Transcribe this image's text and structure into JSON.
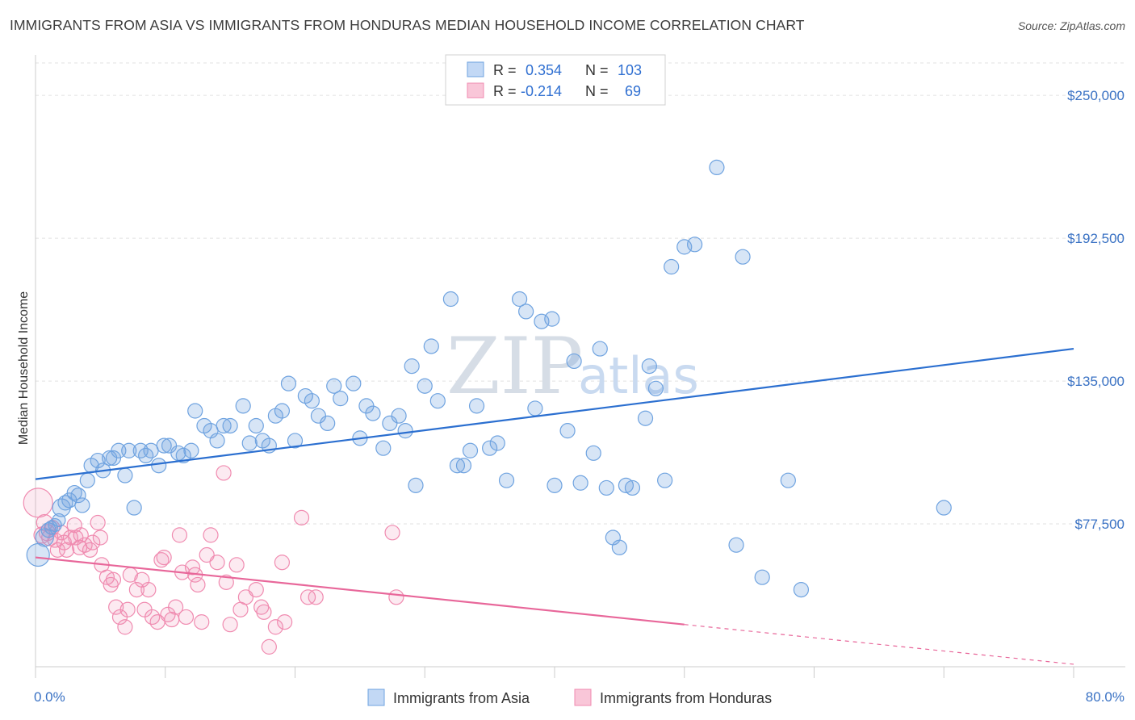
{
  "title": "IMMIGRANTS FROM ASIA VS IMMIGRANTS FROM HONDURAS MEDIAN HOUSEHOLD INCOME CORRELATION CHART",
  "source": "Source: ZipAtlas.com",
  "watermark": {
    "zip": "ZIP",
    "atlas": "atlas"
  },
  "colors": {
    "asia": "#6fa3e0",
    "asia_line": "#2b6fd0",
    "honduras": "#f08bb0",
    "honduras_line": "#e8679a",
    "tick_text": "#3a72c4"
  },
  "legend": {
    "rows": [
      {
        "r_label": "R =",
        "r_value": "0.354",
        "n_label": "N =",
        "n_value": "103"
      },
      {
        "r_label": "R =",
        "r_value": "-0.214",
        "n_label": "N =",
        "n_value": "69"
      }
    ]
  },
  "chart_data": {
    "type": "scatter",
    "ylabel": "Median Household Income",
    "xlim": [
      0,
      80
    ],
    "ylim": [
      20000,
      265000
    ],
    "x_tick_labels": [
      "0.0%",
      "80.0%"
    ],
    "y_ticks": [
      {
        "value": 77500,
        "label": "$77,500"
      },
      {
        "value": 135000,
        "label": "$135,000"
      },
      {
        "value": 192500,
        "label": "$192,500"
      },
      {
        "value": 250000,
        "label": "$250,000"
      }
    ],
    "series": [
      {
        "name": "Immigrants from Asia",
        "trend": {
          "x": [
            0,
            80
          ],
          "y": [
            95500,
            148000
          ]
        },
        "points": [
          [
            0.2,
            65000,
            14
          ],
          [
            0.7,
            72000,
            11
          ],
          [
            1.0,
            75000,
            9
          ],
          [
            1.2,
            76000,
            8
          ],
          [
            1.5,
            77000,
            8
          ],
          [
            1.8,
            79000,
            8
          ],
          [
            2.0,
            84000,
            11
          ],
          [
            2.3,
            86000,
            9
          ],
          [
            2.6,
            87000,
            9
          ],
          [
            3.0,
            90000,
            9
          ],
          [
            3.3,
            89000,
            9
          ],
          [
            3.6,
            85000,
            9
          ],
          [
            4.0,
            95000,
            9
          ],
          [
            4.3,
            101000,
            9
          ],
          [
            4.8,
            103000,
            9
          ],
          [
            5.2,
            99000,
            9
          ],
          [
            5.7,
            104000,
            9
          ],
          [
            6.0,
            104000,
            9
          ],
          [
            6.4,
            107000,
            9
          ],
          [
            6.9,
            97000,
            9
          ],
          [
            7.2,
            107000,
            9
          ],
          [
            7.6,
            84000,
            9
          ],
          [
            8.1,
            107000,
            9
          ],
          [
            8.5,
            105000,
            9
          ],
          [
            8.9,
            107000,
            9
          ],
          [
            9.5,
            101000,
            9
          ],
          [
            9.9,
            109000,
            9
          ],
          [
            10.3,
            109000,
            9
          ],
          [
            11.0,
            106000,
            9
          ],
          [
            11.4,
            105000,
            9
          ],
          [
            12.0,
            107000,
            9
          ],
          [
            12.3,
            123000,
            9
          ],
          [
            13.0,
            117000,
            9
          ],
          [
            13.5,
            115000,
            9
          ],
          [
            14.0,
            111000,
            9
          ],
          [
            14.5,
            117000,
            9
          ],
          [
            15.0,
            117000,
            9
          ],
          [
            16.0,
            125000,
            9
          ],
          [
            16.5,
            110000,
            9
          ],
          [
            17.0,
            117000,
            9
          ],
          [
            17.5,
            111000,
            9
          ],
          [
            18.0,
            109000,
            9
          ],
          [
            18.5,
            121000,
            9
          ],
          [
            19.0,
            123000,
            9
          ],
          [
            19.5,
            134000,
            9
          ],
          [
            20.0,
            111000,
            9
          ],
          [
            20.8,
            129000,
            9
          ],
          [
            21.3,
            127000,
            9
          ],
          [
            21.8,
            121000,
            9
          ],
          [
            22.5,
            118000,
            9
          ],
          [
            23.0,
            133000,
            9
          ],
          [
            23.5,
            128000,
            9
          ],
          [
            24.5,
            134000,
            9
          ],
          [
            25.0,
            112000,
            9
          ],
          [
            25.5,
            125000,
            9
          ],
          [
            26.0,
            122000,
            9
          ],
          [
            26.8,
            108000,
            9
          ],
          [
            27.3,
            118000,
            9
          ],
          [
            28.0,
            121000,
            9
          ],
          [
            28.5,
            115000,
            9
          ],
          [
            29.0,
            141000,
            9
          ],
          [
            29.3,
            93000,
            9
          ],
          [
            30.0,
            133000,
            9
          ],
          [
            30.5,
            149000,
            9
          ],
          [
            31.0,
            127000,
            9
          ],
          [
            32.0,
            168000,
            9
          ],
          [
            32.5,
            101000,
            9
          ],
          [
            33.0,
            101000,
            9
          ],
          [
            33.5,
            107000,
            9
          ],
          [
            34.0,
            125000,
            9
          ],
          [
            35.0,
            108000,
            9
          ],
          [
            35.6,
            110000,
            9
          ],
          [
            36.3,
            95000,
            9
          ],
          [
            37.3,
            168000,
            9
          ],
          [
            37.8,
            163000,
            9
          ],
          [
            38.5,
            124000,
            9
          ],
          [
            39.0,
            159000,
            9
          ],
          [
            39.8,
            160000,
            9
          ],
          [
            40.0,
            93000,
            9
          ],
          [
            41.0,
            115000,
            9
          ],
          [
            41.5,
            143000,
            9
          ],
          [
            42.0,
            94000,
            9
          ],
          [
            43.0,
            106000,
            9
          ],
          [
            43.5,
            148000,
            9
          ],
          [
            44.5,
            72000,
            9
          ],
          [
            45.0,
            68000,
            9
          ],
          [
            44.0,
            92000,
            9
          ],
          [
            45.5,
            93000,
            9
          ],
          [
            46.0,
            92000,
            9
          ],
          [
            47.0,
            120000,
            9
          ],
          [
            47.3,
            141000,
            9
          ],
          [
            47.8,
            132000,
            9
          ],
          [
            48.5,
            95000,
            9
          ],
          [
            49.0,
            181000,
            9
          ],
          [
            50.0,
            189000,
            9
          ],
          [
            50.8,
            190000,
            9
          ],
          [
            52.5,
            221000,
            9
          ],
          [
            54.0,
            69000,
            9
          ],
          [
            54.5,
            185000,
            9
          ],
          [
            56.0,
            56000,
            9
          ],
          [
            58.0,
            95000,
            9
          ],
          [
            59.0,
            51000,
            9
          ],
          [
            70.0,
            84000,
            9
          ]
        ]
      },
      {
        "name": "Immigrants from Honduras",
        "trend_solid": {
          "x": [
            0,
            50
          ],
          "y": [
            64000,
            37000
          ]
        },
        "trend_dashed": {
          "x": [
            50,
            80
          ],
          "y": [
            37000,
            21000
          ]
        },
        "points": [
          [
            0.2,
            86000,
            18
          ],
          [
            0.5,
            73000,
            10
          ],
          [
            0.7,
            78000,
            10
          ],
          [
            0.9,
            74000,
            10
          ],
          [
            1.1,
            72000,
            10
          ],
          [
            1.3,
            76000,
            9
          ],
          [
            1.5,
            71000,
            9
          ],
          [
            1.7,
            67000,
            9
          ],
          [
            2.0,
            74000,
            9
          ],
          [
            2.2,
            70000,
            9
          ],
          [
            2.4,
            67000,
            9
          ],
          [
            2.7,
            72000,
            9
          ],
          [
            3.0,
            77000,
            9
          ],
          [
            3.1,
            72000,
            9
          ],
          [
            3.4,
            68000,
            9
          ],
          [
            3.5,
            73000,
            9
          ],
          [
            3.8,
            69000,
            9
          ],
          [
            4.2,
            67000,
            9
          ],
          [
            4.4,
            70000,
            9
          ],
          [
            4.8,
            78000,
            9
          ],
          [
            5.0,
            72000,
            9
          ],
          [
            5.1,
            61000,
            9
          ],
          [
            5.5,
            56000,
            9
          ],
          [
            5.8,
            53000,
            9
          ],
          [
            6.0,
            55000,
            9
          ],
          [
            6.2,
            44000,
            9
          ],
          [
            6.5,
            40000,
            9
          ],
          [
            6.9,
            36000,
            9
          ],
          [
            7.1,
            43000,
            9
          ],
          [
            7.3,
            57000,
            9
          ],
          [
            7.8,
            51000,
            9
          ],
          [
            8.2,
            55000,
            9
          ],
          [
            8.4,
            43000,
            9
          ],
          [
            8.7,
            51000,
            9
          ],
          [
            9.0,
            40000,
            9
          ],
          [
            9.4,
            38000,
            9
          ],
          [
            9.7,
            63000,
            9
          ],
          [
            9.9,
            64000,
            9
          ],
          [
            10.2,
            41000,
            9
          ],
          [
            10.5,
            39000,
            9
          ],
          [
            10.8,
            44000,
            9
          ],
          [
            11.1,
            73000,
            9
          ],
          [
            11.3,
            58000,
            9
          ],
          [
            11.6,
            40000,
            9
          ],
          [
            12.1,
            60000,
            9
          ],
          [
            12.3,
            57000,
            9
          ],
          [
            12.5,
            53000,
            9
          ],
          [
            12.8,
            38000,
            9
          ],
          [
            13.2,
            65000,
            9
          ],
          [
            13.5,
            73000,
            9
          ],
          [
            14.0,
            62000,
            9
          ],
          [
            14.5,
            98000,
            9
          ],
          [
            14.7,
            54000,
            9
          ],
          [
            15.0,
            37000,
            9
          ],
          [
            15.5,
            61000,
            9
          ],
          [
            15.8,
            43000,
            9
          ],
          [
            16.2,
            48000,
            9
          ],
          [
            17.0,
            51000,
            9
          ],
          [
            17.4,
            44000,
            9
          ],
          [
            17.6,
            42000,
            9
          ],
          [
            18.0,
            28000,
            9
          ],
          [
            18.5,
            36000,
            9
          ],
          [
            19.0,
            62000,
            9
          ],
          [
            19.2,
            38000,
            9
          ],
          [
            20.5,
            80000,
            9
          ],
          [
            21.0,
            48000,
            9
          ],
          [
            21.6,
            48000,
            9
          ],
          [
            27.5,
            74000,
            9
          ],
          [
            27.8,
            48000,
            9
          ]
        ]
      }
    ]
  },
  "bottom_legend": [
    {
      "label": "Immigrants from Asia"
    },
    {
      "label": "Immigrants from Honduras"
    }
  ]
}
